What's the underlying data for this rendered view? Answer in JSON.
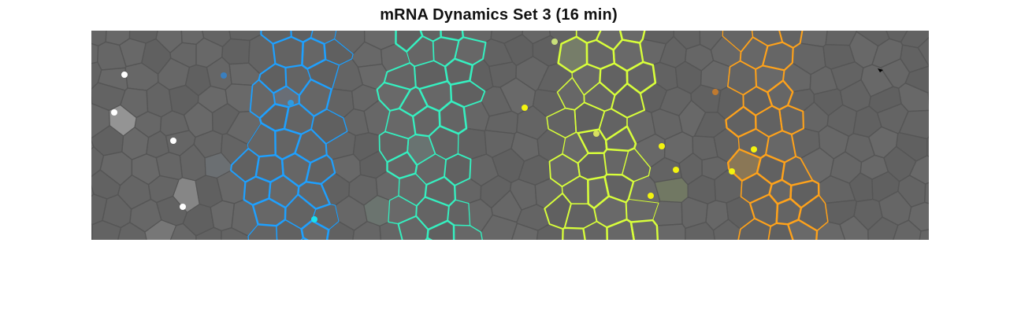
{
  "figure": {
    "title": "mRNA Dynamics Set 3 (16 min)"
  },
  "colors": {
    "background": "#666666",
    "cell_border": "#555555",
    "band_blue": "#1ea0ff",
    "band_teal": "#35f0c0",
    "band_lime": "#d8ff3a",
    "band_orange": "#ffa21a",
    "dot_white": "#ffffff",
    "dot_yellow": "#f4f40e"
  },
  "icons": {
    "cursor": "arrow-cursor-icon"
  }
}
